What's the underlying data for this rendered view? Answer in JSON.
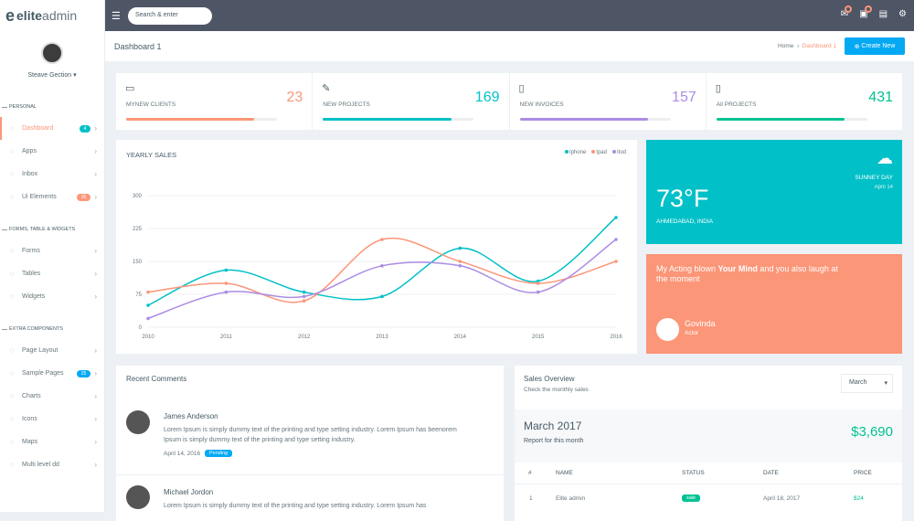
{
  "app": {
    "logo_bold": "elite",
    "logo_light": "admin",
    "user": "Steave Gection"
  },
  "search": {
    "placeholder": "Search & enter"
  },
  "nav": {
    "sec1": "PERSONAL",
    "items1": [
      {
        "label": "Dashboard",
        "badge": "4",
        "badge_color": "#01c0c8"
      },
      {
        "label": "Apps"
      },
      {
        "label": "Inbox"
      },
      {
        "label": "Ui Elements",
        "badge": "25",
        "badge_color": "#fb9678"
      }
    ],
    "sec2": "FORMS, TABLE & WIDGETS",
    "items2": [
      {
        "label": "Forms"
      },
      {
        "label": "Tables"
      },
      {
        "label": "Widgets"
      }
    ],
    "sec3": "EXTRA COMPONENTS",
    "items3": [
      {
        "label": "Page Layout"
      },
      {
        "label": "Sample Pages",
        "badge": "25",
        "badge_color": "#03a9f3"
      },
      {
        "label": "Charts"
      },
      {
        "label": "Icons"
      },
      {
        "label": "Maps"
      },
      {
        "label": "Multi level dd"
      }
    ]
  },
  "page": {
    "title": "Dashboard 1",
    "crumb_home": "Home",
    "crumb_current": "Dashboard 1",
    "create": "Create New"
  },
  "stats": [
    {
      "label": "MYNEW CLIENTS",
      "value": "23",
      "color": "#fb9678",
      "progress": 0.85
    },
    {
      "label": "NEW PROJECTS",
      "value": "169",
      "color": "#01c0c8",
      "progress": 0.85
    },
    {
      "label": "NEW INVOICES",
      "value": "157",
      "color": "#ab8ce4",
      "progress": 0.85
    },
    {
      "label": "All PROJECTS",
      "value": "431",
      "color": "#00c292",
      "progress": 0.85
    }
  ],
  "chart_data": {
    "type": "line",
    "title": "YEARLY SALES",
    "x": [
      "2010",
      "2011",
      "2012",
      "2013",
      "2014",
      "2015",
      "2016"
    ],
    "ylim": [
      0,
      300
    ],
    "yticks": [
      0,
      75,
      150,
      225,
      300
    ],
    "series": [
      {
        "name": "Iphone",
        "color": "#01c0c8",
        "values": [
          50,
          130,
          80,
          70,
          180,
          105,
          250
        ]
      },
      {
        "name": "Ipad",
        "color": "#fb9678",
        "values": [
          80,
          100,
          60,
          200,
          150,
          100,
          150
        ]
      },
      {
        "name": "Itod",
        "color": "#ab8ce4",
        "values": [
          20,
          80,
          70,
          140,
          140,
          80,
          200
        ]
      }
    ]
  },
  "weather": {
    "cond": "SUNNEY DAY",
    "day": "April 14",
    "temp": "73°F",
    "city": "AHMEDABAD, INDIA"
  },
  "quote": {
    "pre": "My Acting blown ",
    "bold": "Your Mind",
    "post": " and you also laugh at the moment",
    "name": "Govinda",
    "role": "Actor"
  },
  "comments": {
    "title": "Recent Comments",
    "items": [
      {
        "name": "James Anderson",
        "text": "Lorem Ipsum is simply dummy text of the printing and type setting industry. Lorem Ipsum has beenorem Ipsum is simply dummy text of the printing and type setting industry.",
        "date": "April 14, 2016",
        "status": "Pending",
        "status_color": "#03a9f3"
      },
      {
        "name": "Michael Jordon",
        "text": "Lorem Ipsum is simply dummy text of the printing and type setting industry. Lorem Ipsum has",
        "date": "",
        "status": "",
        "status_color": "#03a9f3"
      }
    ]
  },
  "sales": {
    "title": "Sales Overview",
    "subtitle": "Check the monthly sales",
    "select": "March",
    "month": "March 2017",
    "report": "Report for this month",
    "amount": "$3,690",
    "headers": [
      "#",
      "NAME",
      "STATUS",
      "DATE",
      "PRICE"
    ],
    "rows": [
      {
        "n": "1",
        "name": "Elite admin",
        "status": "sale",
        "date": "April 18, 2017",
        "price": "$24"
      }
    ]
  }
}
